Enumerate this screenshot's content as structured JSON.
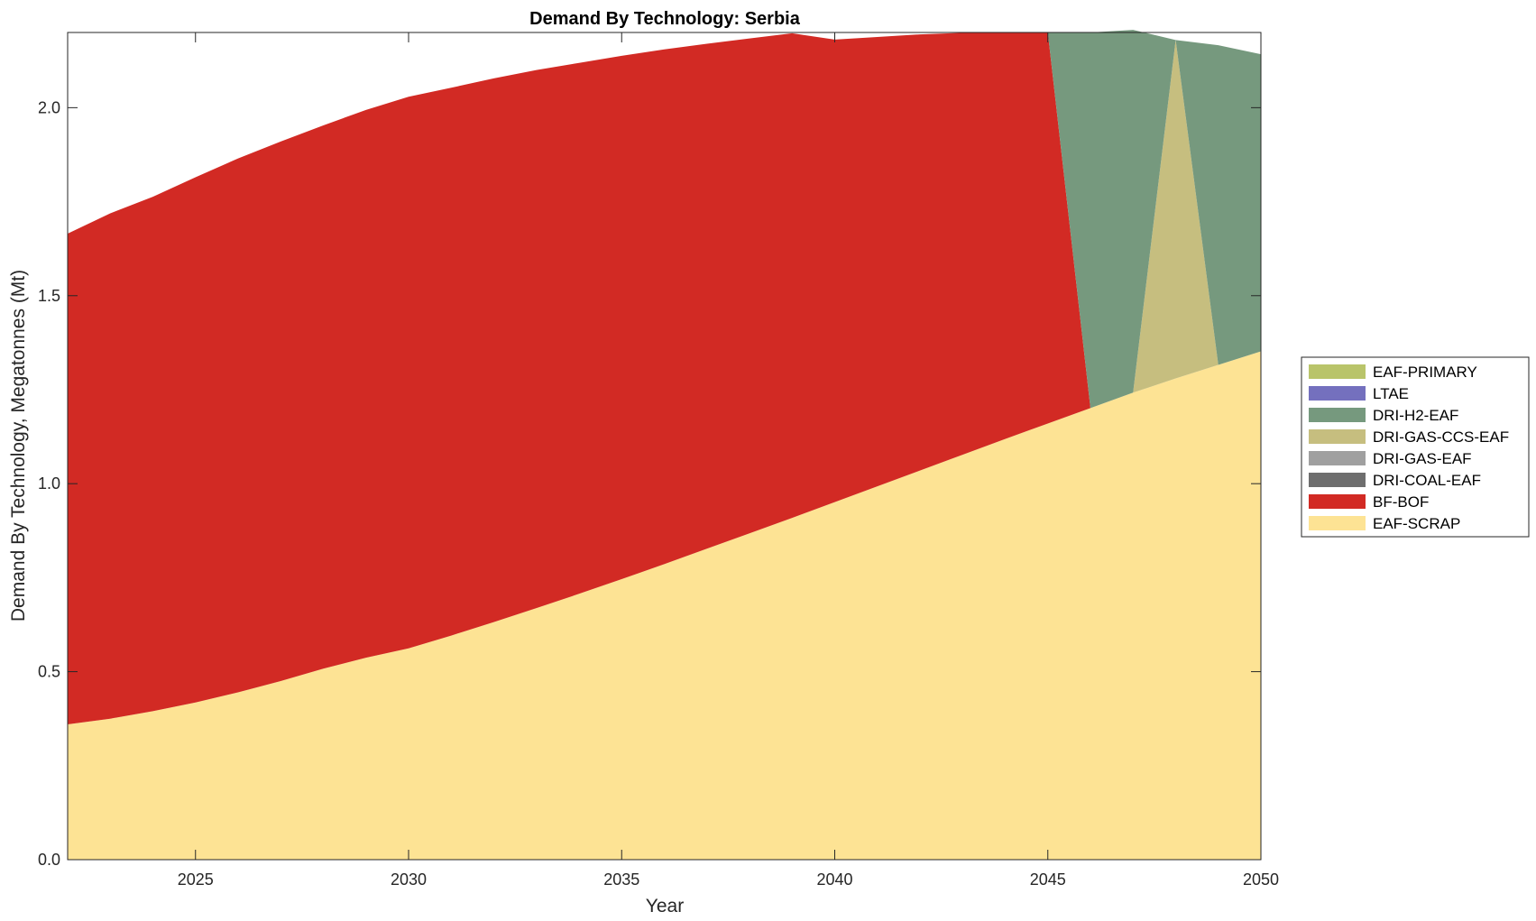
{
  "chart_data": {
    "type": "area",
    "stacked": true,
    "title": "Demand By Technology: Serbia",
    "xlabel": "Year",
    "ylabel": "Demand By Technology, Megatonnes (Mt)",
    "xlim": [
      2022,
      2050
    ],
    "ylim": [
      0,
      2.2
    ],
    "x_ticks": [
      2025,
      2030,
      2035,
      2040,
      2045,
      2050
    ],
    "y_ticks": [
      0.0,
      0.5,
      1.0,
      1.5,
      2.0
    ],
    "x_tick_labels": [
      "2025",
      "2030",
      "2035",
      "2040",
      "2045",
      "2050"
    ],
    "y_tick_labels": [
      "0.0",
      "0.5",
      "1.0",
      "1.5",
      "2.0"
    ],
    "grid": false,
    "legend_position": "right",
    "x": [
      2022,
      2023,
      2024,
      2025,
      2026,
      2027,
      2028,
      2029,
      2030,
      2031,
      2032,
      2033,
      2034,
      2035,
      2036,
      2037,
      2038,
      2039,
      2040,
      2041,
      2042,
      2043,
      2044,
      2045,
      2046,
      2047,
      2048,
      2049,
      2050
    ],
    "series": [
      {
        "name": "EAF-SCRAP",
        "color": "#fde394",
        "values": [
          0.36,
          0.375,
          0.395,
          0.418,
          0.445,
          0.475,
          0.508,
          0.537,
          0.562,
          0.596,
          0.632,
          0.669,
          0.707,
          0.746,
          0.786,
          0.827,
          0.868,
          0.909,
          0.951,
          0.993,
          1.035,
          1.077,
          1.119,
          1.16,
          1.201,
          1.242,
          1.28,
          1.316,
          1.352
        ]
      },
      {
        "name": "BF-BOF",
        "color": "#d22a24",
        "values": [
          1.305,
          1.344,
          1.368,
          1.397,
          1.42,
          1.435,
          1.445,
          1.457,
          1.467,
          1.457,
          1.446,
          1.431,
          1.412,
          1.392,
          1.369,
          1.343,
          1.316,
          1.289,
          1.23,
          1.195,
          1.16,
          1.122,
          1.081,
          1.04,
          0.0,
          0.0,
          0.0,
          0.0,
          0.0
        ]
      },
      {
        "name": "DRI-COAL-EAF",
        "color": "#6e6e6e",
        "values": [
          0,
          0,
          0,
          0,
          0,
          0,
          0,
          0,
          0,
          0,
          0,
          0,
          0,
          0,
          0,
          0,
          0,
          0,
          0,
          0,
          0,
          0,
          0,
          0,
          0,
          0,
          0,
          0,
          0
        ]
      },
      {
        "name": "DRI-GAS-EAF",
        "color": "#a0a0a0",
        "values": [
          0,
          0,
          0,
          0,
          0,
          0,
          0,
          0,
          0,
          0,
          0,
          0,
          0,
          0,
          0,
          0,
          0,
          0,
          0,
          0,
          0,
          0,
          0,
          0,
          0,
          0,
          0,
          0,
          0
        ]
      },
      {
        "name": "DRI-GAS-CCS-EAF",
        "color": "#c6be7f",
        "values": [
          0,
          0,
          0,
          0,
          0,
          0,
          0,
          0,
          0,
          0,
          0,
          0,
          0,
          0,
          0,
          0,
          0,
          0,
          0,
          0,
          0,
          0,
          0,
          0,
          0,
          0,
          0.9,
          0,
          0
        ]
      },
      {
        "name": "DRI-H2-EAF",
        "color": "#76997e",
        "values": [
          0,
          0,
          0,
          0,
          0,
          0,
          0,
          0,
          0,
          0,
          0,
          0,
          0,
          0,
          0,
          0,
          0,
          0,
          0,
          0,
          0,
          0,
          0,
          0,
          0.999,
          0.965,
          0,
          0.85,
          0.79
        ]
      },
      {
        "name": "LTAE",
        "color": "#7470be",
        "values": [
          0,
          0,
          0,
          0,
          0,
          0,
          0,
          0,
          0,
          0,
          0,
          0,
          0,
          0,
          0,
          0,
          0,
          0,
          0,
          0,
          0,
          0,
          0,
          0,
          0,
          0,
          0,
          0,
          0
        ]
      },
      {
        "name": "EAF-PRIMARY",
        "color": "#b9c46a",
        "values": [
          0,
          0,
          0,
          0,
          0,
          0,
          0,
          0,
          0,
          0,
          0,
          0,
          0,
          0,
          0,
          0,
          0,
          0,
          0,
          0,
          0,
          0,
          0,
          0,
          0,
          0,
          0,
          0,
          0
        ]
      }
    ],
    "legend_order": [
      "EAF-PRIMARY",
      "LTAE",
      "DRI-H2-EAF",
      "DRI-GAS-CCS-EAF",
      "DRI-GAS-EAF",
      "DRI-COAL-EAF",
      "BF-BOF",
      "EAF-SCRAP"
    ]
  }
}
